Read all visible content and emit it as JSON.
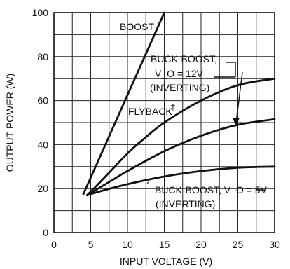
{
  "chart_data": {
    "type": "line",
    "xlabel": "INPUT VOLTAGE (V)",
    "ylabel": "OUTPUT POWER (W)",
    "xlim": [
      0,
      30
    ],
    "ylim": [
      0,
      100
    ],
    "x_ticks": [
      0,
      5,
      10,
      15,
      20,
      25,
      30
    ],
    "y_ticks": [
      0,
      20,
      40,
      60,
      80,
      100
    ],
    "x_minor_step": 2.5,
    "y_minor_step": 10,
    "grid": true,
    "legend": "none",
    "series": [
      {
        "name": "BOOST",
        "x": [
          4,
          15
        ],
        "y": [
          17.5,
          100
        ]
      },
      {
        "name": "BUCK-BOOST, V_O = 12V (INVERTING)",
        "x": [
          4.5,
          6,
          8,
          10,
          12,
          15,
          20,
          25,
          30
        ],
        "y": [
          17,
          22,
          29,
          36,
          42,
          50,
          60,
          67,
          70
        ]
      },
      {
        "name": "FLYBACK†",
        "x": [
          4.5,
          6,
          8,
          10,
          15,
          20,
          25,
          30
        ],
        "y": [
          17,
          20,
          24,
          28,
          37,
          44,
          49,
          51.5
        ]
      },
      {
        "name": "BUCK-BOOST, V_O = 5V (INVERTING)",
        "x": [
          4.5,
          6,
          10,
          15,
          20,
          25,
          30
        ],
        "y": [
          17,
          18.5,
          22,
          25.5,
          28,
          29.5,
          30
        ]
      }
    ],
    "annotations": [
      {
        "id": "boost",
        "lines": [
          "BOOST"
        ]
      },
      {
        "id": "bb12",
        "lines": [
          "BUCK-BOOST,",
          "V_O = 12V",
          "(INVERTING)"
        ]
      },
      {
        "id": "flyback",
        "lines": [
          "FLYBACK",
          "†"
        ]
      },
      {
        "id": "bb5",
        "lines": [
          "BUCK-BOOST, V_O = 5V",
          "(INVERTING)"
        ]
      }
    ]
  }
}
